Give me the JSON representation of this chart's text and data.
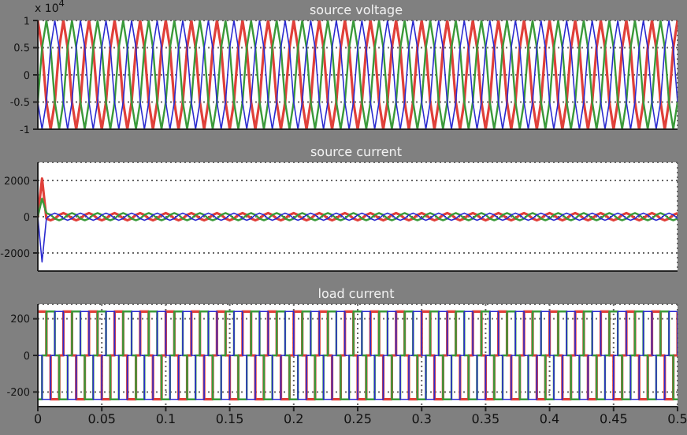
{
  "chart_data": [
    {
      "type": "line",
      "title": "source voltage",
      "annotations": [
        "x 10$^{4}$"
      ],
      "grid": true,
      "tick_labels": "y",
      "xlim": [
        0,
        0.5
      ],
      "xticks": [
        0,
        0.05,
        0.1,
        0.15,
        0.2,
        0.25,
        0.3,
        0.35,
        0.4,
        0.45,
        0.5
      ],
      "ylim": [
        -1,
        1
      ],
      "yticks": [
        -1,
        -0.5,
        0,
        0.5,
        1
      ],
      "x": [
        0,
        0.0033,
        0.0067,
        0.01,
        0.0133,
        0.0167,
        0.02,
        0.0233,
        0.0267,
        0.03,
        0.0333,
        0.0367,
        0.04,
        0.0433,
        0.0467,
        0.05,
        0.0533,
        0.0567,
        0.06,
        0.0633,
        0.0667,
        0.07,
        0.0733,
        0.0767,
        0.08,
        0.0833,
        0.0867,
        0.09,
        0.0933,
        0.0967,
        0.1,
        0.1033,
        0.1067,
        0.11,
        0.1133,
        0.1167,
        0.12,
        0.1233,
        0.1267,
        0.13,
        0.1333,
        0.1367,
        0.14,
        0.1433,
        0.1467,
        0.15,
        0.1533,
        0.1567,
        0.16,
        0.1633,
        0.1667,
        0.17,
        0.1733,
        0.1767,
        0.18,
        0.1833,
        0.1867,
        0.19,
        0.1933,
        0.1967,
        0.2,
        0.2033,
        0.2067,
        0.21,
        0.2133,
        0.2167,
        0.22,
        0.2233,
        0.2267,
        0.23,
        0.2333,
        0.2367,
        0.24,
        0.2433,
        0.2467,
        0.25,
        0.2533,
        0.2567,
        0.26,
        0.2633,
        0.2667,
        0.27,
        0.2733,
        0.2767,
        0.28,
        0.2833,
        0.2867,
        0.29,
        0.2933,
        0.2967,
        0.3,
        0.3033,
        0.3067,
        0.31,
        0.3133,
        0.3167,
        0.32,
        0.3233,
        0.3267,
        0.33,
        0.3333,
        0.3367,
        0.34,
        0.3433,
        0.3467,
        0.35,
        0.3533,
        0.3567,
        0.36,
        0.3633,
        0.3667,
        0.37,
        0.3733,
        0.3767,
        0.38,
        0.3833,
        0.3867,
        0.39,
        0.3933,
        0.3967,
        0.4,
        0.4033,
        0.4067,
        0.41,
        0.4133,
        0.4167,
        0.42,
        0.4233,
        0.4267,
        0.43,
        0.4333,
        0.4367,
        0.44,
        0.4433,
        0.4467,
        0.45,
        0.4533,
        0.4567,
        0.46,
        0.4633,
        0.4667,
        0.47,
        0.4733,
        0.4767,
        0.48,
        0.4833,
        0.4867,
        0.49,
        0.4933,
        0.4967,
        0.5
      ],
      "series": [
        {
          "color": "#e0403a",
          "values": [
            1,
            0.5,
            -0.5,
            -1,
            -0.5,
            0.5,
            1,
            0.5,
            -0.5,
            -1,
            -0.5,
            0.5,
            1,
            0.5,
            -0.5,
            -1,
            -0.5,
            0.5,
            1,
            0.5,
            -0.5,
            -1,
            -0.5,
            0.5,
            1,
            0.5,
            -0.5,
            -1,
            -0.5,
            0.5,
            1,
            0.5,
            -0.5,
            -1,
            -0.5,
            0.5,
            1,
            0.5,
            -0.5,
            -1,
            -0.5,
            0.5,
            1,
            0.5,
            -0.5,
            -1,
            -0.5,
            0.5,
            1,
            0.5,
            -0.5,
            -1,
            -0.5,
            0.5,
            1,
            0.5,
            -0.5,
            -1,
            -0.5,
            0.5,
            1,
            0.5,
            -0.5,
            -1,
            -0.5,
            0.5,
            1,
            0.5,
            -0.5,
            -1,
            -0.5,
            0.5,
            1,
            0.5,
            -0.5,
            -1,
            -0.5,
            0.5,
            1,
            0.5,
            -0.5,
            -1,
            -0.5,
            0.5,
            1,
            0.5,
            -0.5,
            -1,
            -0.5,
            0.5,
            1,
            0.5,
            -0.5,
            -1,
            -0.5,
            0.5,
            1,
            0.5,
            -0.5,
            -1,
            -0.5,
            0.5,
            1,
            0.5,
            -0.5,
            -1,
            -0.5,
            0.5,
            1,
            0.5,
            -0.5,
            -1,
            -0.5,
            0.5,
            1,
            0.5,
            -0.5,
            -1,
            -0.5,
            0.5,
            1,
            0.5,
            -0.5,
            -1,
            -0.5,
            0.5,
            1,
            0.5,
            -0.5,
            -1,
            -0.5,
            0.5,
            1,
            0.5,
            -0.5,
            -1,
            -0.5,
            0.5,
            1,
            0.5,
            -0.5,
            -1,
            -0.5,
            0.5,
            1,
            0.5,
            -0.5,
            -1,
            -0.5,
            0.5,
            1
          ]
        },
        {
          "color": "#3a9a3a",
          "values": [
            -0.5,
            0.5,
            1,
            0.5,
            -0.5,
            -1,
            -0.5,
            0.5,
            1,
            0.5,
            -0.5,
            -1,
            -0.5,
            0.5,
            1,
            0.5,
            -0.5,
            -1,
            -0.5,
            0.5,
            1,
            0.5,
            -0.5,
            -1,
            -0.5,
            0.5,
            1,
            0.5,
            -0.5,
            -1,
            -0.5,
            0.5,
            1,
            0.5,
            -0.5,
            -1,
            -0.5,
            0.5,
            1,
            0.5,
            -0.5,
            -1,
            -0.5,
            0.5,
            1,
            0.5,
            -0.5,
            -1,
            -0.5,
            0.5,
            1,
            0.5,
            -0.5,
            -1,
            -0.5,
            0.5,
            1,
            0.5,
            -0.5,
            -1,
            -0.5,
            0.5,
            1,
            0.5,
            -0.5,
            -1,
            -0.5,
            0.5,
            1,
            0.5,
            -0.5,
            -1,
            -0.5,
            0.5,
            1,
            0.5,
            -0.5,
            -1,
            -0.5,
            0.5,
            1,
            0.5,
            -0.5,
            -1,
            -0.5,
            0.5,
            1,
            0.5,
            -0.5,
            -1,
            -0.5,
            0.5,
            1,
            0.5,
            -0.5,
            -1,
            -0.5,
            0.5,
            1,
            0.5,
            -0.5,
            -1,
            -0.5,
            0.5,
            1,
            0.5,
            -0.5,
            -1,
            -0.5,
            0.5,
            1,
            0.5,
            -0.5,
            -1,
            -0.5,
            0.5,
            1,
            0.5,
            -0.5,
            -1,
            -0.5,
            0.5,
            1,
            0.5,
            -0.5,
            -1,
            -0.5,
            0.5,
            1,
            0.5,
            -0.5,
            -1,
            -0.5,
            0.5,
            1,
            0.5,
            -0.5,
            -1,
            -0.5,
            0.5,
            1,
            0.5,
            -0.5,
            -1,
            -0.5,
            0.5,
            1,
            0.5,
            -0.5,
            -1,
            -0.5
          ]
        },
        {
          "color": "#2b2bd0",
          "values": [
            -0.5,
            -1,
            -0.5,
            0.5,
            1,
            0.5,
            -0.5,
            -1,
            -0.5,
            0.5,
            1,
            0.5,
            -0.5,
            -1,
            -0.5,
            0.5,
            1,
            0.5,
            -0.5,
            -1,
            -0.5,
            0.5,
            1,
            0.5,
            -0.5,
            -1,
            -0.5,
            0.5,
            1,
            0.5,
            -0.5,
            -1,
            -0.5,
            0.5,
            1,
            0.5,
            -0.5,
            -1,
            -0.5,
            0.5,
            1,
            0.5,
            -0.5,
            -1,
            -0.5,
            0.5,
            1,
            0.5,
            -0.5,
            -1,
            -0.5,
            0.5,
            1,
            0.5,
            -0.5,
            -1,
            -0.5,
            0.5,
            1,
            0.5,
            -0.5,
            -1,
            -0.5,
            0.5,
            1,
            0.5,
            -0.5,
            -1,
            -0.5,
            0.5,
            1,
            0.5,
            -0.5,
            -1,
            -0.5,
            0.5,
            1,
            0.5,
            -0.5,
            -1,
            -0.5,
            0.5,
            1,
            0.5,
            -0.5,
            -1,
            -0.5,
            0.5,
            1,
            0.5,
            -0.5,
            -1,
            -0.5,
            0.5,
            1,
            0.5,
            -0.5,
            -1,
            -0.5,
            0.5,
            1,
            0.5,
            -0.5,
            -1,
            -0.5,
            0.5,
            1,
            0.5,
            -0.5,
            -1,
            -0.5,
            0.5,
            1,
            0.5,
            -0.5,
            -1,
            -0.5,
            0.5,
            1,
            0.5,
            -0.5,
            -1,
            -0.5,
            0.5,
            1,
            0.5,
            -0.5,
            -1,
            -0.5,
            0.5,
            1,
            0.5,
            -0.5,
            -1,
            -0.5,
            0.5,
            1,
            0.5,
            -0.5,
            -1,
            -0.5,
            0.5,
            1,
            0.5,
            -0.5,
            -1,
            -0.5,
            0.5,
            1,
            0.5,
            -0.5
          ]
        }
      ]
    },
    {
      "type": "line",
      "title": "source current",
      "grid": true,
      "tick_labels": "y",
      "xlim": [
        0,
        0.5
      ],
      "xticks": [
        0,
        0.05,
        0.1,
        0.15,
        0.2,
        0.25,
        0.3,
        0.35,
        0.4,
        0.45,
        0.5
      ],
      "ylim": [
        -3000,
        3000
      ],
      "yticks": [
        -2000,
        0,
        2000
      ],
      "x": [
        0,
        0.0033,
        0.0067,
        0.01,
        0.0133,
        0.0167,
        0.02,
        0.0233,
        0.0267,
        0.03,
        0.0333,
        0.0367,
        0.04,
        0.0433,
        0.0467,
        0.05,
        0.0533,
        0.0567,
        0.06,
        0.0633,
        0.0667,
        0.07,
        0.0733,
        0.0767,
        0.08,
        0.0833,
        0.0867,
        0.09,
        0.0933,
        0.0967,
        0.1,
        0.1033,
        0.1067,
        0.11,
        0.1133,
        0.1167,
        0.12,
        0.1233,
        0.1267,
        0.13,
        0.1333,
        0.1367,
        0.14,
        0.1433,
        0.1467,
        0.15,
        0.1533,
        0.1567,
        0.16,
        0.1633,
        0.1667,
        0.17,
        0.1733,
        0.1767,
        0.18,
        0.1833,
        0.1867,
        0.19,
        0.1933,
        0.1967,
        0.2,
        0.2033,
        0.2067,
        0.21,
        0.2133,
        0.2167,
        0.22,
        0.2233,
        0.2267,
        0.23,
        0.2333,
        0.2367,
        0.24,
        0.2433,
        0.2467,
        0.25,
        0.2533,
        0.2567,
        0.26,
        0.2633,
        0.2667,
        0.27,
        0.2733,
        0.2767,
        0.28,
        0.2833,
        0.2867,
        0.29,
        0.2933,
        0.2967,
        0.3,
        0.3033,
        0.3067,
        0.31,
        0.3133,
        0.3167,
        0.32,
        0.3233,
        0.3267,
        0.33,
        0.3333,
        0.3367,
        0.34,
        0.3433,
        0.3467,
        0.35,
        0.3533,
        0.3567,
        0.36,
        0.3633,
        0.3667,
        0.37,
        0.3733,
        0.3767,
        0.38,
        0.3833,
        0.3867,
        0.39,
        0.3933,
        0.3967,
        0.4,
        0.4033,
        0.4067,
        0.41,
        0.4133,
        0.4167,
        0.42,
        0.4233,
        0.4267,
        0.43,
        0.4333,
        0.4367,
        0.44,
        0.4433,
        0.4467,
        0.45,
        0.4533,
        0.4567,
        0.46,
        0.4633,
        0.4667,
        0.47,
        0.4733,
        0.4767,
        0.48,
        0.4833,
        0.4867,
        0.49,
        0.4933,
        0.4967,
        0.5
      ],
      "series": [
        {
          "color": "#e0403a",
          "values": [
            0,
            2100,
            -100,
            -200,
            -100,
            100,
            200,
            100,
            -100,
            -200,
            -100,
            100,
            200,
            100,
            -100,
            -200,
            -100,
            100,
            200,
            100,
            -100,
            -200,
            -100,
            100,
            200,
            100,
            -100,
            -200,
            -100,
            100,
            200,
            100,
            -100,
            -200,
            -100,
            100,
            200,
            100,
            -100,
            -200,
            -100,
            100,
            200,
            100,
            -100,
            -200,
            -100,
            100,
            200,
            100,
            -100,
            -200,
            -100,
            100,
            200,
            100,
            -100,
            -200,
            -100,
            100,
            200,
            100,
            -100,
            -200,
            -100,
            100,
            200,
            100,
            -100,
            -200,
            -100,
            100,
            200,
            100,
            -100,
            -200,
            -100,
            100,
            200,
            100,
            -100,
            -200,
            -100,
            100,
            200,
            100,
            -100,
            -200,
            -100,
            100,
            200,
            100,
            -100,
            -200,
            -100,
            100,
            200,
            100,
            -100,
            -200,
            -100,
            100,
            200,
            100,
            -100,
            -200,
            -100,
            100,
            200,
            100,
            -100,
            -200,
            -100,
            100,
            200,
            100,
            -100,
            -200,
            -100,
            100,
            200,
            100,
            -100,
            -200,
            -100,
            100,
            200,
            100,
            -100,
            -200,
            -100,
            100,
            200,
            100,
            -100,
            -200,
            -100,
            100,
            200,
            100,
            -100,
            -200,
            -100,
            100,
            200,
            100,
            -100,
            -200,
            -100,
            100,
            200
          ]
        },
        {
          "color": "#3a9a3a",
          "values": [
            0,
            1000,
            200,
            100,
            -100,
            -200,
            -100,
            100,
            200,
            100,
            -100,
            -200,
            -100,
            100,
            200,
            100,
            -100,
            -200,
            -100,
            100,
            200,
            100,
            -100,
            -200,
            -100,
            100,
            200,
            100,
            -100,
            -200,
            -100,
            100,
            200,
            100,
            -100,
            -200,
            -100,
            100,
            200,
            100,
            -100,
            -200,
            -100,
            100,
            200,
            100,
            -100,
            -200,
            -100,
            100,
            200,
            100,
            -100,
            -200,
            -100,
            100,
            200,
            100,
            -100,
            -200,
            -100,
            100,
            200,
            100,
            -100,
            -200,
            -100,
            100,
            200,
            100,
            -100,
            -200,
            -100,
            100,
            200,
            100,
            -100,
            -200,
            -100,
            100,
            200,
            100,
            -100,
            -200,
            -100,
            100,
            200,
            100,
            -100,
            -200,
            -100,
            100,
            200,
            100,
            -100,
            -200,
            -100,
            100,
            200,
            100,
            -100,
            -200,
            -100,
            100,
            200,
            100,
            -100,
            -200,
            -100,
            100,
            200,
            100,
            -100,
            -200,
            -100,
            100,
            200,
            100,
            -100,
            -200,
            -100,
            100,
            200,
            100,
            -100,
            -200,
            -100,
            100,
            200,
            100,
            -100,
            -200,
            -100,
            100,
            200,
            100,
            -100,
            -200,
            -100,
            100,
            200,
            100,
            -100,
            -200,
            -100,
            100,
            200,
            100,
            -100,
            -200,
            -100
          ]
        },
        {
          "color": "#2b2bd0",
          "values": [
            0,
            -2500,
            -100,
            100,
            200,
            100,
            -100,
            -200,
            -100,
            100,
            200,
            100,
            -100,
            -200,
            -100,
            100,
            200,
            100,
            -100,
            -200,
            -100,
            100,
            200,
            100,
            -100,
            -200,
            -100,
            100,
            200,
            100,
            -100,
            -200,
            -100,
            100,
            200,
            100,
            -100,
            -200,
            -100,
            100,
            200,
            100,
            -100,
            -200,
            -100,
            100,
            200,
            100,
            -100,
            -200,
            -100,
            100,
            200,
            100,
            -100,
            -200,
            -100,
            100,
            200,
            100,
            -100,
            -200,
            -100,
            100,
            200,
            100,
            -100,
            -200,
            -100,
            100,
            200,
            100,
            -100,
            -200,
            -100,
            100,
            200,
            100,
            -100,
            -200,
            -100,
            100,
            200,
            100,
            -100,
            -200,
            -100,
            100,
            200,
            100,
            -100,
            -200,
            -100,
            100,
            200,
            100,
            -100,
            -200,
            -100,
            100,
            200,
            100,
            -100,
            -200,
            -100,
            100,
            200,
            100,
            -100,
            -200,
            -100,
            100,
            200,
            100,
            -100,
            -200,
            -100,
            100,
            200,
            100,
            -100,
            -200,
            -100,
            100,
            200,
            100,
            -100,
            -200,
            -100,
            100,
            200,
            100,
            -100,
            -200,
            -100,
            100,
            200,
            100,
            -100,
            -200,
            -100,
            100,
            200,
            100,
            -100,
            -200,
            -100,
            100,
            200,
            100,
            -100
          ]
        }
      ]
    },
    {
      "type": "step",
      "title": "load current",
      "grid": true,
      "xlim": [
        0,
        0.5
      ],
      "xticks": [
        0,
        0.05,
        0.1,
        0.15,
        0.2,
        0.25,
        0.3,
        0.35,
        0.4,
        0.45,
        0.5
      ],
      "ylim": [
        -280,
        280
      ],
      "yticks": [
        -200,
        0,
        200
      ],
      "x": [
        0,
        0.0033,
        0.0067,
        0.01,
        0.0133,
        0.0167,
        0.02,
        0.0233,
        0.0267,
        0.03,
        0.0333,
        0.0367,
        0.04,
        0.0433,
        0.0467,
        0.05,
        0.0533,
        0.0567,
        0.06,
        0.0633,
        0.0667,
        0.07,
        0.0733,
        0.0767,
        0.08,
        0.0833,
        0.0867,
        0.09,
        0.0933,
        0.0967,
        0.1,
        0.1033,
        0.1067,
        0.11,
        0.1133,
        0.1167,
        0.12,
        0.1233,
        0.1267,
        0.13,
        0.1333,
        0.1367,
        0.14,
        0.1433,
        0.1467,
        0.15,
        0.1533,
        0.1567,
        0.16,
        0.1633,
        0.1667,
        0.17,
        0.1733,
        0.1767,
        0.18,
        0.1833,
        0.1867,
        0.19,
        0.1933,
        0.1967,
        0.2,
        0.2033,
        0.2067,
        0.21,
        0.2133,
        0.2167,
        0.22,
        0.2233,
        0.2267,
        0.23,
        0.2333,
        0.2367,
        0.24,
        0.2433,
        0.2467,
        0.25,
        0.2533,
        0.2567,
        0.26,
        0.2633,
        0.2667,
        0.27,
        0.2733,
        0.2767,
        0.28,
        0.2833,
        0.2867,
        0.29,
        0.2933,
        0.2967,
        0.3,
        0.3033,
        0.3067,
        0.31,
        0.3133,
        0.3167,
        0.32,
        0.3233,
        0.3267,
        0.33,
        0.3333,
        0.3367,
        0.34,
        0.3433,
        0.3467,
        0.35,
        0.3533,
        0.3567,
        0.36,
        0.3633,
        0.3667,
        0.37,
        0.3733,
        0.3767,
        0.38,
        0.3833,
        0.3867,
        0.39,
        0.3933,
        0.3967,
        0.4,
        0.4033,
        0.4067,
        0.41,
        0.4133,
        0.4167,
        0.42,
        0.4233,
        0.4267,
        0.43,
        0.4333,
        0.4367,
        0.44,
        0.4433,
        0.4467,
        0.45,
        0.4533,
        0.4567,
        0.46,
        0.4633,
        0.4667,
        0.47,
        0.4733,
        0.4767,
        0.48,
        0.4833,
        0.4867,
        0.49,
        0.4933,
        0.4967,
        0.5
      ],
      "series": [
        {
          "color": "#e0403a",
          "values": [
            240,
            240,
            0,
            -240,
            -240,
            0,
            240,
            240,
            0,
            -240,
            -240,
            0,
            240,
            240,
            0,
            -240,
            -240,
            0,
            240,
            240,
            0,
            -240,
            -240,
            0,
            240,
            240,
            0,
            -240,
            -240,
            0,
            240,
            240,
            0,
            -240,
            -240,
            0,
            240,
            240,
            0,
            -240,
            -240,
            0,
            240,
            240,
            0,
            -240,
            -240,
            0,
            240,
            240,
            0,
            -240,
            -240,
            0,
            240,
            240,
            0,
            -240,
            -240,
            0,
            240,
            240,
            0,
            -240,
            -240,
            0,
            240,
            240,
            0,
            -240,
            -240,
            0,
            240,
            240,
            0,
            -240,
            -240,
            0,
            240,
            240,
            0,
            -240,
            -240,
            0,
            240,
            240,
            0,
            -240,
            -240,
            0,
            240,
            240,
            0,
            -240,
            -240,
            0,
            240,
            240,
            0,
            -240,
            -240,
            0,
            240,
            240,
            0,
            -240,
            -240,
            0,
            240,
            240,
            0,
            -240,
            -240,
            0,
            240,
            240,
            0,
            -240,
            -240,
            0,
            240,
            240,
            0,
            -240,
            -240,
            0,
            240,
            240,
            0,
            -240,
            -240,
            0,
            240,
            240,
            0,
            -240,
            -240,
            0,
            240,
            240,
            0,
            -240,
            -240,
            0,
            240,
            240,
            0,
            -240,
            -240,
            0,
            240
          ]
        },
        {
          "color": "#3a9a3a",
          "values": [
            -240,
            0,
            240,
            240,
            0,
            -240,
            -240,
            0,
            240,
            240,
            0,
            -240,
            -240,
            0,
            240,
            240,
            0,
            -240,
            -240,
            0,
            240,
            240,
            0,
            -240,
            -240,
            0,
            240,
            240,
            0,
            -240,
            -240,
            0,
            240,
            240,
            0,
            -240,
            -240,
            0,
            240,
            240,
            0,
            -240,
            -240,
            0,
            240,
            240,
            0,
            -240,
            -240,
            0,
            240,
            240,
            0,
            -240,
            -240,
            0,
            240,
            240,
            0,
            -240,
            -240,
            0,
            240,
            240,
            0,
            -240,
            -240,
            0,
            240,
            240,
            0,
            -240,
            -240,
            0,
            240,
            240,
            0,
            -240,
            -240,
            0,
            240,
            240,
            0,
            -240,
            -240,
            0,
            240,
            240,
            0,
            -240,
            -240,
            0,
            240,
            240,
            0,
            -240,
            -240,
            0,
            240,
            240,
            0,
            -240,
            -240,
            0,
            240,
            240,
            0,
            -240,
            -240,
            0,
            240,
            240,
            0,
            -240,
            -240,
            0,
            240,
            240,
            0,
            -240,
            -240,
            0,
            240,
            240,
            0,
            -240,
            -240,
            0,
            240,
            240,
            0,
            -240,
            -240,
            0,
            240,
            240,
            0,
            -240,
            -240,
            0,
            240,
            240,
            0,
            -240,
            -240,
            0,
            240,
            240,
            0,
            -240,
            -240
          ]
        },
        {
          "color": "#2b2bd0",
          "values": [
            0,
            -240,
            -240,
            0,
            240,
            240,
            0,
            -240,
            -240,
            0,
            240,
            240,
            0,
            -240,
            -240,
            0,
            240,
            240,
            0,
            -240,
            -240,
            0,
            240,
            240,
            0,
            -240,
            -240,
            0,
            240,
            240,
            0,
            -240,
            -240,
            0,
            240,
            240,
            0,
            -240,
            -240,
            0,
            240,
            240,
            0,
            -240,
            -240,
            0,
            240,
            240,
            0,
            -240,
            -240,
            0,
            240,
            240,
            0,
            -240,
            -240,
            0,
            240,
            240,
            0,
            -240,
            -240,
            0,
            240,
            240,
            0,
            -240,
            -240,
            0,
            240,
            240,
            0,
            -240,
            -240,
            0,
            240,
            240,
            0,
            -240,
            -240,
            0,
            240,
            240,
            0,
            -240,
            -240,
            0,
            240,
            240,
            0,
            -240,
            -240,
            0,
            240,
            240,
            0,
            -240,
            -240,
            0,
            240,
            240,
            0,
            -240,
            -240,
            0,
            240,
            240,
            0,
            -240,
            -240,
            0,
            240,
            240,
            0,
            -240,
            -240,
            0,
            240,
            240,
            0,
            -240,
            -240,
            0,
            240,
            240,
            0,
            -240,
            -240,
            0,
            240,
            240,
            0,
            -240,
            -240,
            0,
            240,
            240,
            0,
            -240,
            -240,
            0,
            240,
            240,
            0,
            -240,
            -240,
            0,
            240,
            240,
            0
          ]
        }
      ]
    }
  ]
}
